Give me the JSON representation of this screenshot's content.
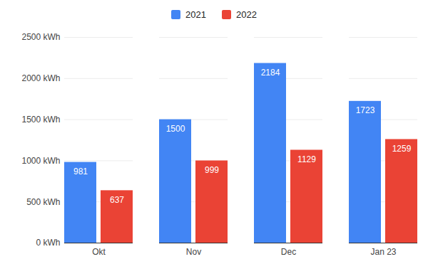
{
  "chart_data": {
    "type": "bar",
    "categories": [
      "Okt",
      "Nov",
      "Dec",
      "Jan 23"
    ],
    "series": [
      {
        "name": "2021",
        "color": "#4285f4",
        "values": [
          981,
          1500,
          2184,
          1723
        ]
      },
      {
        "name": "2022",
        "color": "#ea4335",
        "values": [
          637,
          999,
          1129,
          1259
        ]
      }
    ],
    "ylim": [
      0,
      2500
    ],
    "yticks": [
      {
        "value": 0,
        "label": "0 kWh"
      },
      {
        "value": 500,
        "label": "500 kWh"
      },
      {
        "value": 1000,
        "label": "1000 kWh"
      },
      {
        "value": 1500,
        "label": "1500 kWh"
      },
      {
        "value": 2000,
        "label": "2000 kWh"
      },
      {
        "value": 2500,
        "label": "2500 kWh"
      }
    ],
    "grid": true,
    "legend": "top",
    "data_labels": true
  }
}
